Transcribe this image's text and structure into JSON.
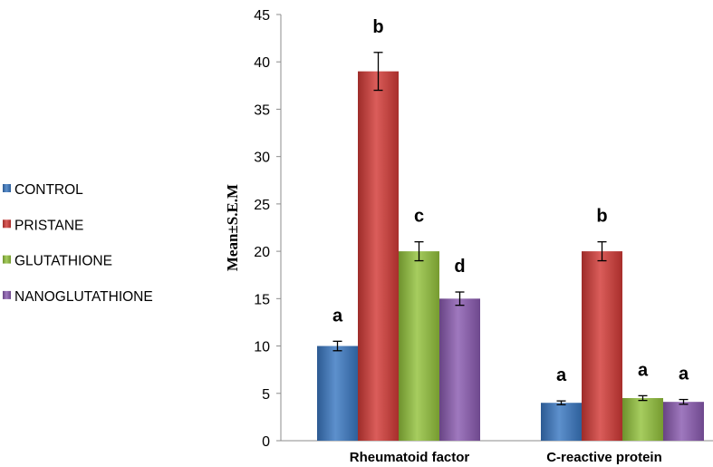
{
  "chart_data": {
    "type": "bar",
    "title": "",
    "xlabel": "",
    "ylabel": "Mean±S.E.M",
    "ylim": [
      0,
      45
    ],
    "ytick_step": 5,
    "grid": false,
    "legend_position": "left",
    "categories": [
      "Rheumatoid factor",
      "C-reactive protein"
    ],
    "series": [
      {
        "name": "CONTROL",
        "color": "#3a78c2",
        "values": [
          10,
          4
        ],
        "errors": [
          0.5,
          0.2
        ],
        "labels": [
          "a",
          "a"
        ]
      },
      {
        "name": "PRISTANE",
        "color": "#d23a36",
        "values": [
          39,
          20
        ],
        "errors": [
          2.0,
          1.0
        ],
        "labels": [
          "b",
          "b"
        ]
      },
      {
        "name": "GLUTATHIONE",
        "color": "#93c23c",
        "values": [
          20,
          4.5
        ],
        "errors": [
          1.0,
          0.25
        ],
        "labels": [
          "c",
          "a"
        ]
      },
      {
        "name": "NANOGLUTATHIONE",
        "color": "#8a5ab0",
        "values": [
          15,
          4.1
        ],
        "errors": [
          0.7,
          0.25
        ],
        "labels": [
          "d",
          "a"
        ]
      }
    ]
  }
}
